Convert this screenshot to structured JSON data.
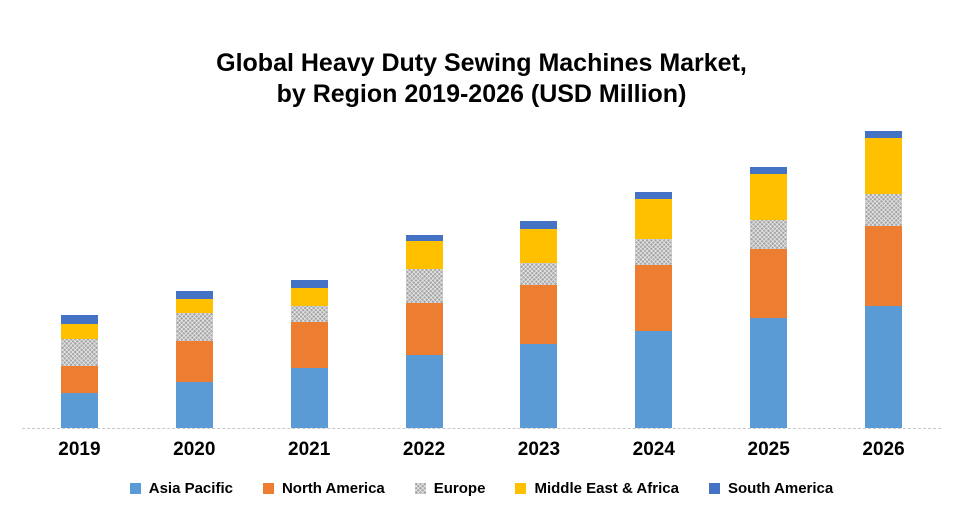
{
  "title": {
    "line1": "Global Heavy Duty Sewing Machines Market,",
    "line2": "by Region 2019-2026 (USD Million)"
  },
  "colors": {
    "asia_pacific": "#5B9BD5",
    "north_america": "#ED7D31",
    "europe": "#A5A5A5",
    "middle_east_africa": "#FFC000",
    "south_america": "#4472C4",
    "axis_line": "#C9C9C9",
    "text": "#000000",
    "background": "#FFFFFF"
  },
  "chart_data": {
    "type": "bar",
    "stacked": true,
    "title": "Global Heavy Duty Sewing Machines Market, by Region 2019-2026 (USD Million)",
    "xlabel": "",
    "ylabel": "",
    "categories": [
      "2019",
      "2020",
      "2021",
      "2022",
      "2023",
      "2024",
      "2025",
      "2026"
    ],
    "series": [
      {
        "name": "Asia Pacific",
        "color": "#5B9BD5",
        "pattern": "solid",
        "values": [
          35,
          46,
          60,
          73,
          84,
          97,
          110,
          122
        ]
      },
      {
        "name": "North America",
        "color": "#ED7D31",
        "pattern": "solid",
        "values": [
          27,
          41,
          46,
          52,
          59,
          66,
          69,
          80
        ]
      },
      {
        "name": "Europe",
        "color": "#A5A5A5",
        "pattern": "crosshatch",
        "values": [
          27,
          28,
          16,
          34,
          22,
          26,
          29,
          32
        ]
      },
      {
        "name": "Middle East & Africa",
        "color": "#FFC000",
        "pattern": "solid",
        "values": [
          15,
          14,
          18,
          28,
          34,
          40,
          46,
          56
        ]
      },
      {
        "name": "South America",
        "color": "#4472C4",
        "pattern": "solid",
        "values": [
          9,
          8,
          8,
          6,
          8,
          7,
          7,
          7
        ]
      }
    ],
    "totals": [
      113,
      137,
      148,
      193,
      207,
      236,
      261,
      297
    ],
    "ylim": [
      0,
      300
    ],
    "y_axis_labels_visible": false,
    "gridlines": false,
    "legend_position": "bottom",
    "units_note": "USD Million; y-axis is unlabeled in the chart, values estimated from relative bar heights"
  }
}
